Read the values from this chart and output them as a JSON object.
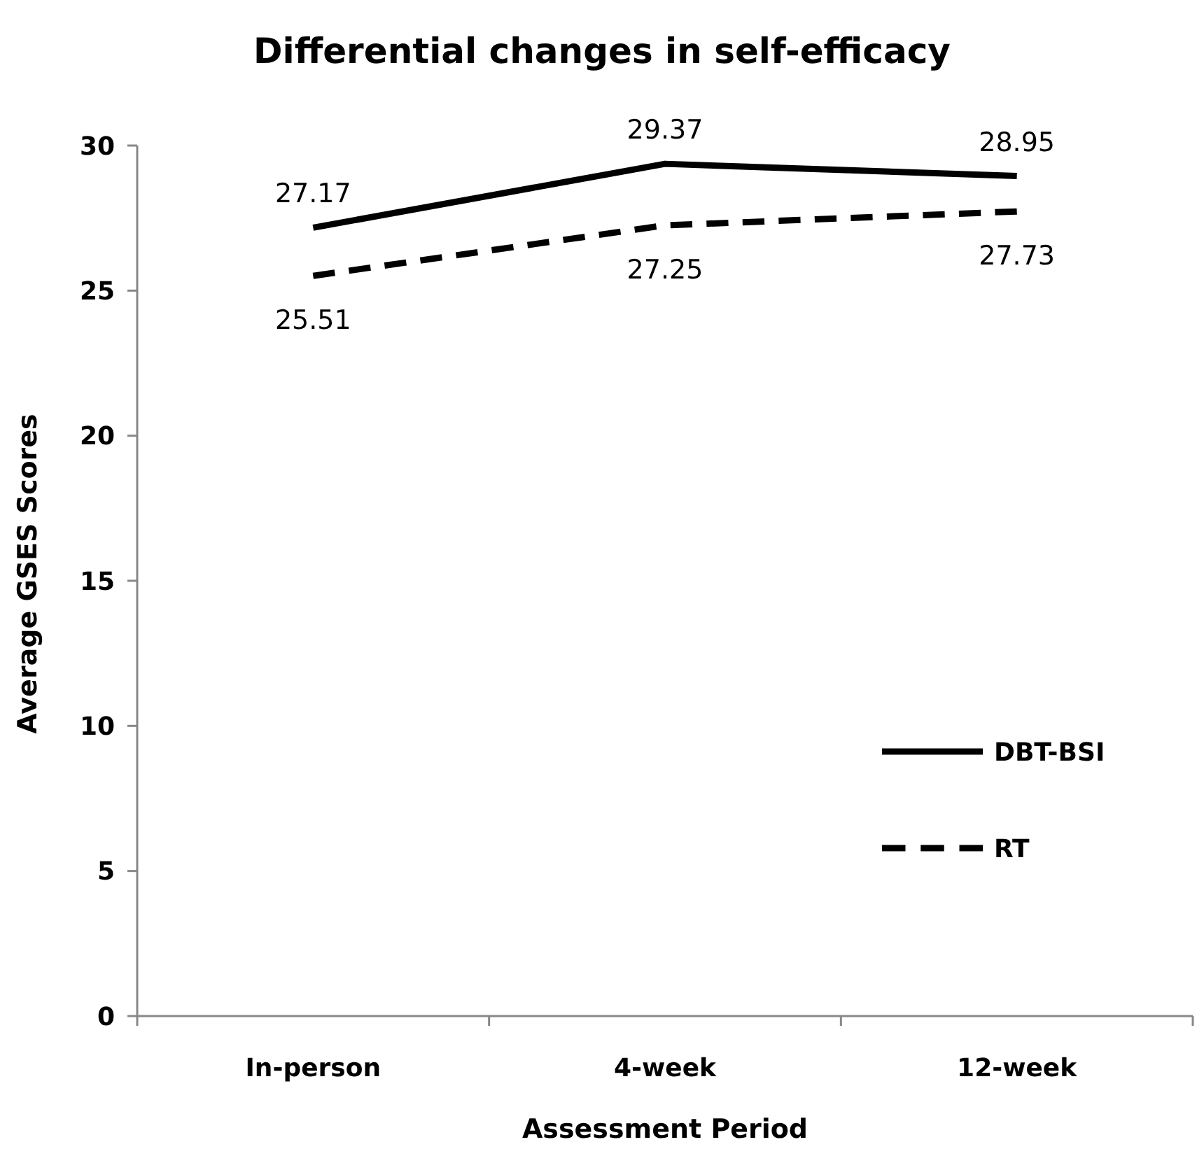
{
  "chart_data": {
    "type": "line",
    "title": "Differential changes in self-efficacy",
    "xlabel": "Assessment Period",
    "ylabel": "Average GSES Scores",
    "categories": [
      "In-person",
      "4-week",
      "12-week"
    ],
    "series": [
      {
        "name": "DBT-BSI",
        "color": "#000000",
        "values": [
          27.17,
          29.37,
          28.95
        ],
        "line_style": "solid"
      },
      {
        "name": "RT",
        "color": "#000000",
        "values": [
          25.51,
          27.25,
          27.73
        ],
        "line_style": "dashed"
      }
    ],
    "ylim": [
      0,
      30
    ],
    "yticks": [
      0,
      5,
      10,
      15,
      20,
      25,
      30
    ],
    "grid": false,
    "legend": "right",
    "marker": "none",
    "data_labels": true
  }
}
